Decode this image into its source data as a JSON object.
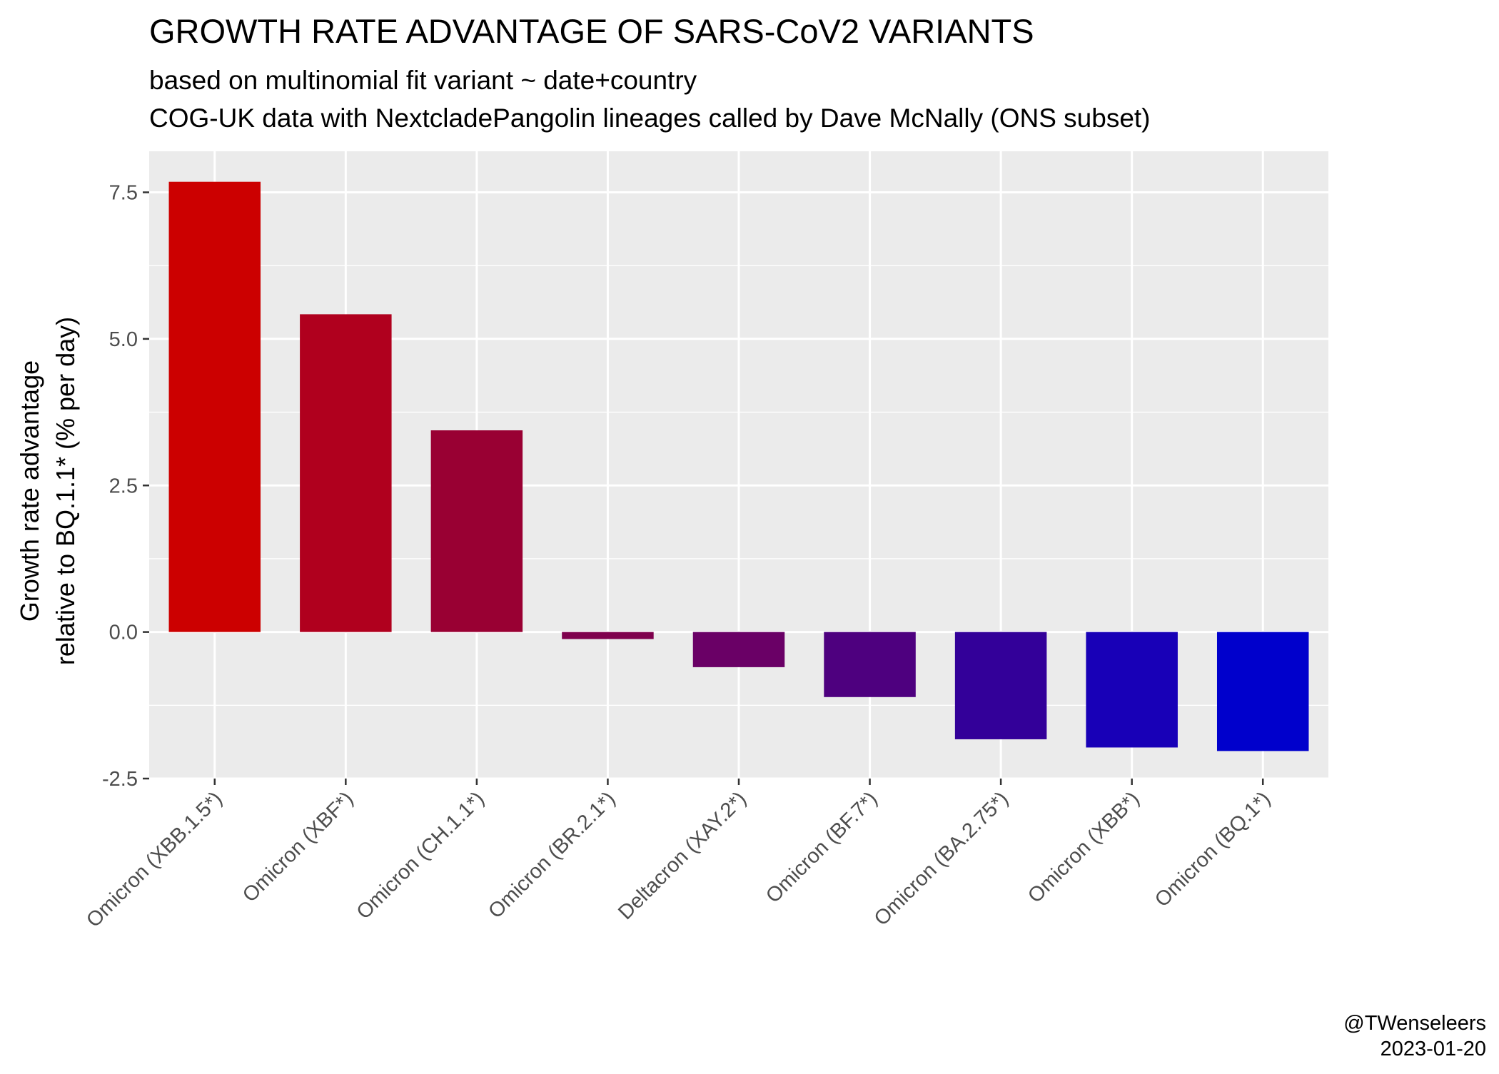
{
  "chart_data": {
    "type": "bar",
    "title": "GROWTH RATE ADVANTAGE OF SARS-CoV2 VARIANTS",
    "subtitle": [
      "based on multinomial fit variant ~ date+country",
      "COG-UK data with NextcladePangolin lineages called by Dave McNally (ONS subset)"
    ],
    "xlabel": "",
    "ylabel": [
      "Growth rate advantage",
      "relative to BQ.1.1* (% per day)"
    ],
    "categories": [
      "Omicron (XBB.1.5*)",
      "Omicron (XBF*)",
      "Omicron (CH.1.1*)",
      "Omicron (BR.2.1*)",
      "Deltacron (XAY.2*)",
      "Omicron (BF.7*)",
      "Omicron (BA.2.75*)",
      "Omicron (XBB*)",
      "Omicron (BQ.1*)"
    ],
    "values": [
      7.68,
      5.42,
      3.44,
      -0.12,
      -0.6,
      -1.11,
      -1.83,
      -1.97,
      -2.03
    ],
    "bar_colors": [
      "#CC0000",
      "#B0001E",
      "#990033",
      "#7F004D",
      "#6A0066",
      "#4E007F",
      "#330099",
      "#1800B7",
      "#0000CC"
    ],
    "ylim": [
      -2.5,
      8.2
    ],
    "yticks": [
      -2.5,
      0.0,
      2.5,
      5.0,
      7.5
    ],
    "ytick_labels": [
      "-2.5",
      "0.0",
      "2.5",
      "5.0",
      "7.5"
    ],
    "grid": true,
    "legend": "none",
    "panel_background": "#EBEBEB",
    "grid_color": "#FFFFFF",
    "caption": [
      "@TWenseleers",
      "2023-01-20"
    ]
  }
}
